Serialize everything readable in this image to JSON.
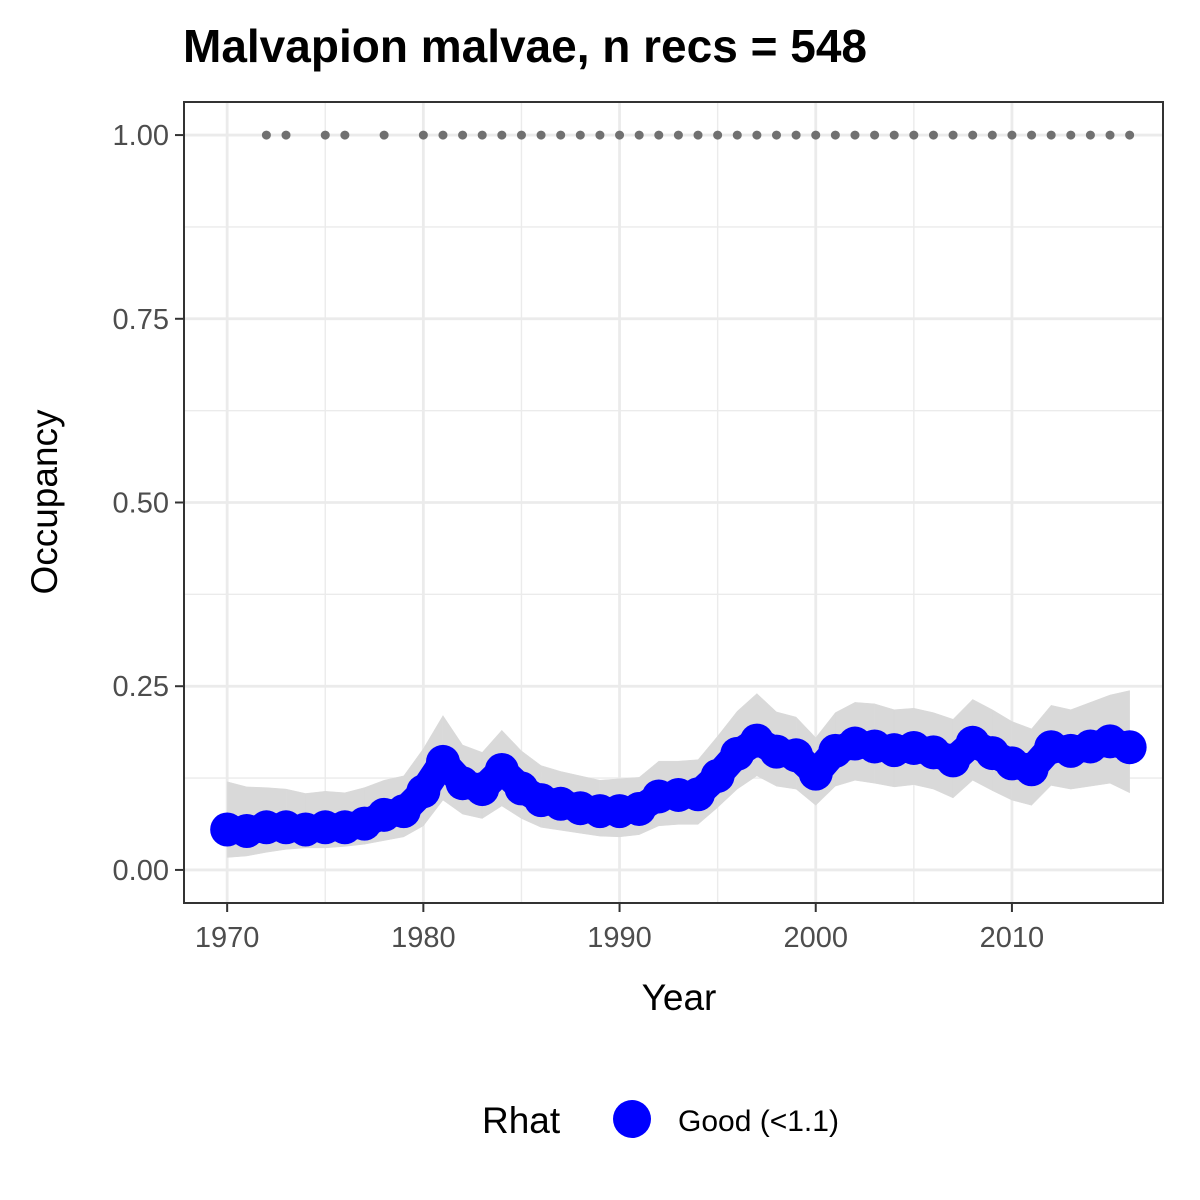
{
  "chart_data": {
    "type": "line",
    "title": "Malvapion malvae, n recs = 548",
    "xlabel": "Year",
    "ylabel": "Occupancy",
    "xlim": [
      1967.8,
      2017.7
    ],
    "ylim": [
      -0.045,
      1.045
    ],
    "x_ticks": [
      1970,
      1980,
      1990,
      2000,
      2010
    ],
    "x_tick_labels": [
      "1970",
      "1980",
      "1990",
      "2000",
      "2010"
    ],
    "y_ticks": [
      0,
      0.25,
      0.5,
      0.75,
      1.0
    ],
    "y_tick_labels": [
      "0.00",
      "0.25",
      "0.50",
      "0.75",
      "1.00"
    ],
    "grid": true,
    "legend": {
      "title": "Rhat",
      "position": "bottom",
      "entries": [
        {
          "label": "Good (<1.1)",
          "color": "#0000ff"
        }
      ]
    },
    "colors": {
      "estimate": "#0000ff",
      "ribbon": "#d9d9d9",
      "records": "#707070",
      "grid": "#ebebeb",
      "border": "#333333"
    },
    "series": [
      {
        "name": "Good (<1.1)",
        "x": [
          1970,
          1971,
          1972,
          1973,
          1974,
          1975,
          1976,
          1977,
          1978,
          1979,
          1980,
          1981,
          1982,
          1983,
          1984,
          1985,
          1986,
          1987,
          1988,
          1989,
          1990,
          1991,
          1992,
          1993,
          1994,
          1995,
          1996,
          1997,
          1998,
          1999,
          2000,
          2001,
          2002,
          2003,
          2004,
          2005,
          2006,
          2007,
          2008,
          2009,
          2010,
          2011,
          2012,
          2013,
          2014,
          2015,
          2016
        ],
        "y": [
          0.055,
          0.053,
          0.058,
          0.058,
          0.055,
          0.058,
          0.058,
          0.063,
          0.075,
          0.08,
          0.107,
          0.147,
          0.118,
          0.11,
          0.136,
          0.111,
          0.095,
          0.09,
          0.084,
          0.08,
          0.08,
          0.083,
          0.1,
          0.102,
          0.103,
          0.128,
          0.158,
          0.176,
          0.161,
          0.156,
          0.131,
          0.162,
          0.172,
          0.168,
          0.163,
          0.166,
          0.16,
          0.149,
          0.173,
          0.159,
          0.145,
          0.137,
          0.167,
          0.162,
          0.168,
          0.175,
          0.167
        ],
        "lower": [
          0.017,
          0.019,
          0.024,
          0.028,
          0.03,
          0.03,
          0.032,
          0.035,
          0.04,
          0.045,
          0.06,
          0.095,
          0.076,
          0.07,
          0.087,
          0.07,
          0.058,
          0.054,
          0.05,
          0.046,
          0.045,
          0.048,
          0.06,
          0.062,
          0.062,
          0.085,
          0.11,
          0.128,
          0.114,
          0.11,
          0.088,
          0.114,
          0.122,
          0.118,
          0.113,
          0.116,
          0.11,
          0.098,
          0.122,
          0.108,
          0.095,
          0.088,
          0.115,
          0.11,
          0.114,
          0.118,
          0.105
        ],
        "upper": [
          0.12,
          0.113,
          0.112,
          0.11,
          0.104,
          0.107,
          0.105,
          0.112,
          0.122,
          0.128,
          0.165,
          0.21,
          0.17,
          0.16,
          0.19,
          0.162,
          0.142,
          0.134,
          0.128,
          0.122,
          0.124,
          0.126,
          0.148,
          0.148,
          0.15,
          0.182,
          0.216,
          0.24,
          0.215,
          0.208,
          0.18,
          0.214,
          0.228,
          0.226,
          0.218,
          0.22,
          0.214,
          0.205,
          0.232,
          0.218,
          0.202,
          0.192,
          0.224,
          0.218,
          0.228,
          0.238,
          0.244
        ]
      }
    ],
    "records": {
      "y": 1.0,
      "x": [
        1972,
        1973,
        1975,
        1976,
        1978,
        1980,
        1981,
        1982,
        1983,
        1984,
        1985,
        1986,
        1987,
        1988,
        1989,
        1990,
        1991,
        1992,
        1993,
        1994,
        1995,
        1996,
        1997,
        1998,
        1999,
        2000,
        2001,
        2002,
        2003,
        2004,
        2005,
        2006,
        2007,
        2008,
        2009,
        2010,
        2011,
        2012,
        2013,
        2014,
        2015,
        2016
      ]
    }
  }
}
